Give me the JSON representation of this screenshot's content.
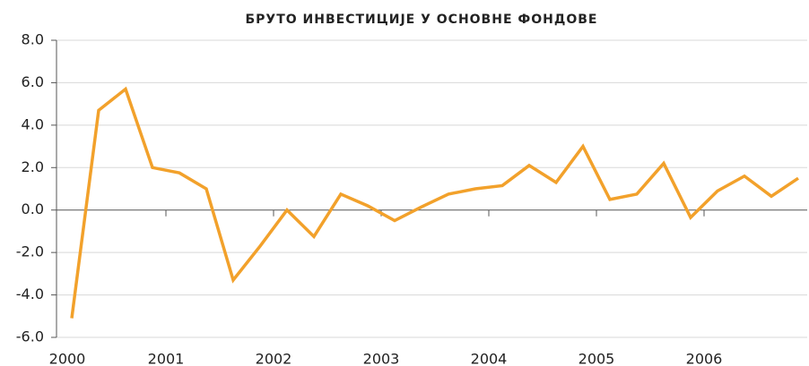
{
  "chart_data": {
    "type": "line",
    "title": "БРУТО ИНВЕСТИЦИЈЕ У ОСНОВНЕ ФОНДОВЕ",
    "categories": [
      "2000",
      null,
      null,
      null,
      "2001",
      null,
      null,
      null,
      "2002",
      null,
      null,
      null,
      "2003",
      null,
      null,
      null,
      "2004",
      null,
      null,
      null,
      "2005",
      null,
      null,
      null,
      "2006",
      null,
      null,
      null
    ],
    "series": [
      {
        "name": "Бруто инвестиције у основне фондове",
        "color": "#f2a12b",
        "values": [
          -5.1,
          4.7,
          5.7,
          2.0,
          1.75,
          1.0,
          -3.3,
          -1.7,
          0.0,
          -1.25,
          0.75,
          0.2,
          -0.5,
          0.15,
          0.75,
          1.0,
          1.15,
          2.1,
          1.3,
          3.0,
          0.5,
          0.75,
          2.2,
          -0.35,
          0.9,
          1.6,
          0.65,
          1.5
        ]
      }
    ],
    "ylim": [
      -6,
      8
    ],
    "yticks": [
      {
        "value": -6,
        "label": "-6.0"
      },
      {
        "value": -4,
        "label": "-4.0"
      },
      {
        "value": -2,
        "label": "-2.0"
      },
      {
        "value": 0,
        "label": "0.0"
      },
      {
        "value": 2,
        "label": "2.0"
      },
      {
        "value": 4,
        "label": "4.0"
      },
      {
        "value": 6,
        "label": "6.0"
      },
      {
        "value": 8,
        "label": "8.0"
      }
    ],
    "grid": true
  }
}
